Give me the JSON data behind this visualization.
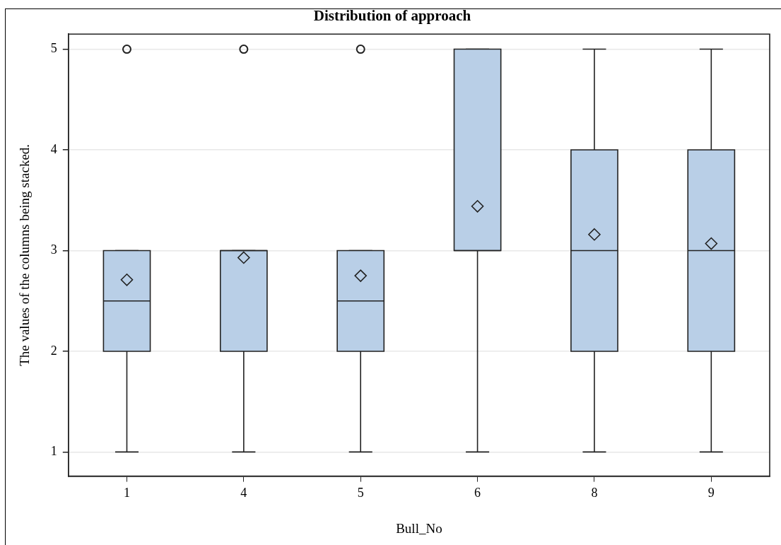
{
  "chart_data": {
    "type": "box",
    "title": "Distribution of approach",
    "xlabel": "Bull_No",
    "ylabel": "The values of the columns being stacked.",
    "categories": [
      "1",
      "4",
      "5",
      "6",
      "8",
      "9"
    ],
    "color": "#b9cfe7",
    "boxes": [
      {
        "low": 1,
        "q1": 2,
        "median": 2.5,
        "q3": 3,
        "high": 3,
        "mean": 2.71,
        "outliers": [
          5
        ]
      },
      {
        "low": 1,
        "q1": 2,
        "median": 3,
        "q3": 3,
        "high": 3,
        "mean": 2.93,
        "outliers": [
          5
        ]
      },
      {
        "low": 1,
        "q1": 2,
        "median": 2.5,
        "q3": 3,
        "high": 3,
        "mean": 2.75,
        "outliers": [
          5
        ]
      },
      {
        "low": 1,
        "q1": 3,
        "median": 3,
        "q3": 5,
        "high": 5,
        "mean": 3.44
      },
      {
        "low": 1,
        "q1": 2,
        "median": 3,
        "q3": 4,
        "high": 5,
        "mean": 3.16
      },
      {
        "low": 1,
        "q1": 2,
        "median": 3,
        "q3": 4,
        "high": 5,
        "mean": 3.07
      }
    ],
    "ylim": [
      0.76,
      5.15
    ],
    "yticks": [
      1,
      2,
      3,
      4,
      5
    ],
    "grid": "y"
  }
}
